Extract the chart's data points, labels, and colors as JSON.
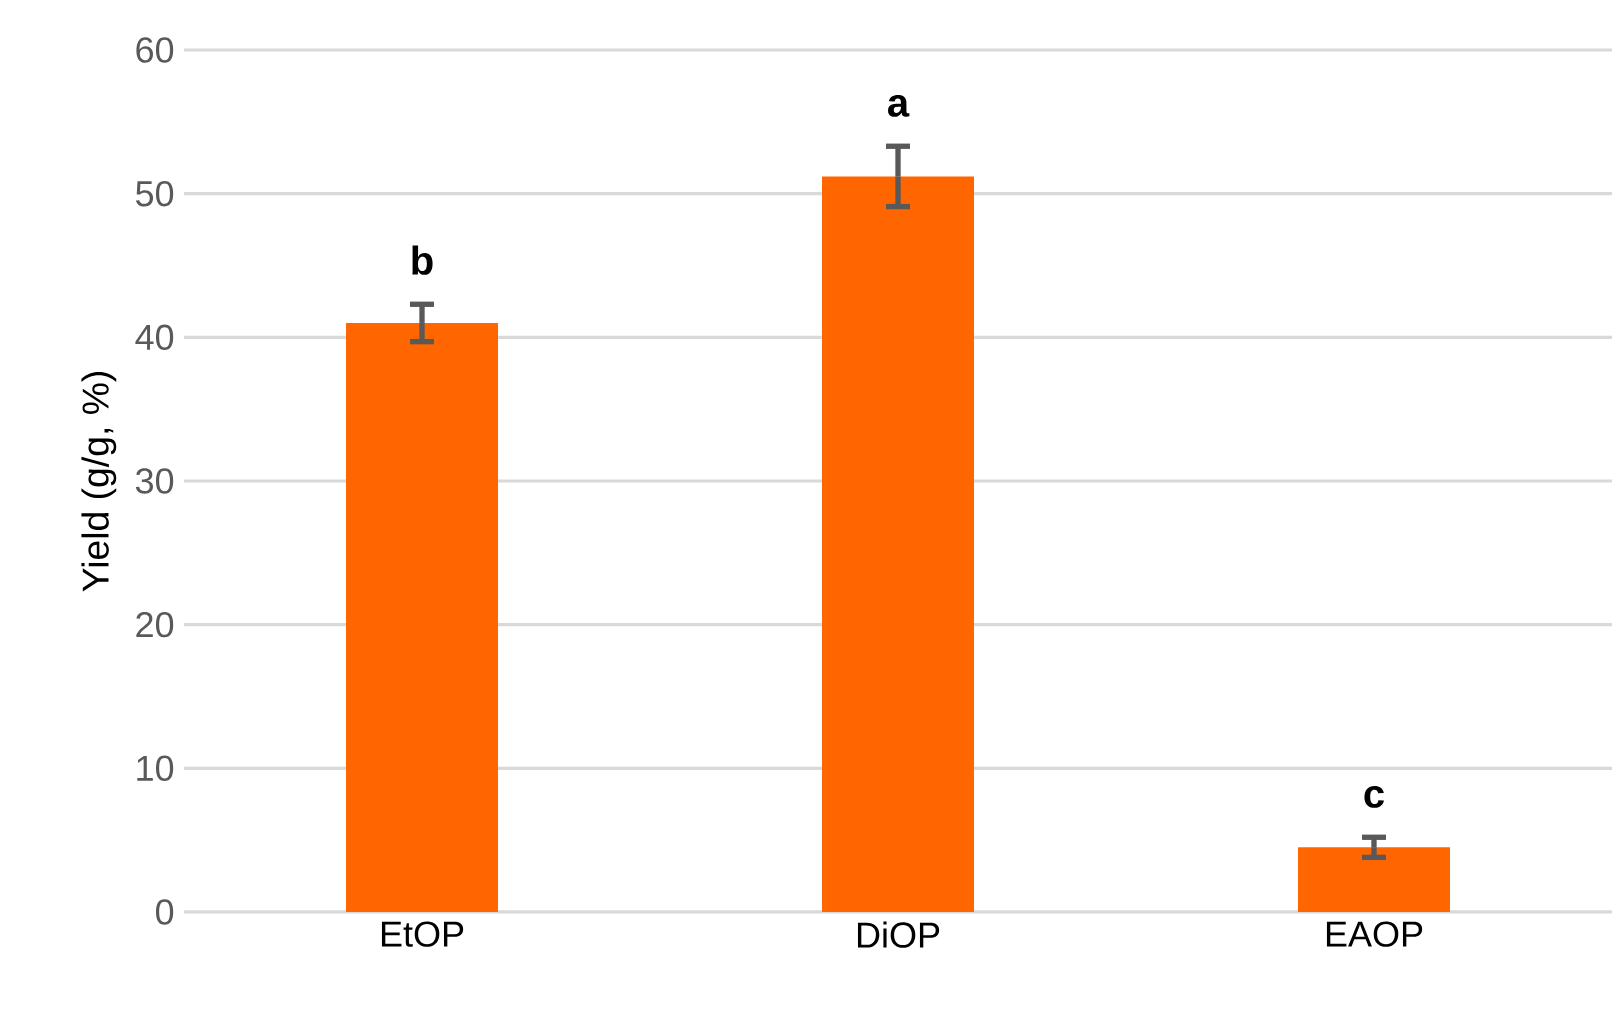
{
  "chart_data": {
    "type": "bar",
    "ylabel": "Yield (g/g, %)",
    "categories": [
      "EtOP",
      "DiOP",
      "EAOP"
    ],
    "values": [
      41.0,
      51.2,
      4.5
    ],
    "errors": [
      1.3,
      2.1,
      0.7
    ],
    "color": "#ff6600",
    "ylim": [
      0,
      60
    ],
    "yticks": [
      0,
      10,
      20,
      30,
      40,
      50,
      60
    ],
    "grid": "y",
    "annotations": [
      "b",
      "a",
      "c"
    ]
  }
}
